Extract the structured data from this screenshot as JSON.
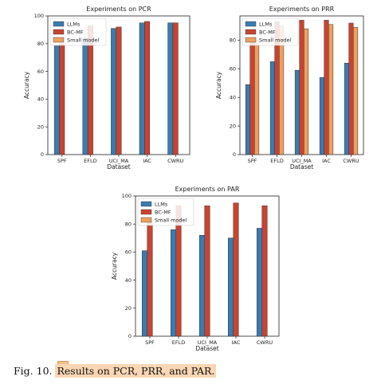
{
  "caption": {
    "label": "Fig. 10.",
    "text": "Results on PCR, PRR, and PAR."
  },
  "colors": {
    "LLMs": "#3a7bb0",
    "BC-MF": "#c9432f",
    "Small model": "#ef9f5f"
  },
  "chart_data": [
    {
      "type": "bar",
      "title": "Experiments on PCR",
      "xlabel": "Dataset",
      "ylabel": "Accuracy",
      "categories": [
        "SPF",
        "EFLD",
        "UCI_MA",
        "IAC",
        "CWRU"
      ],
      "ylim": [
        0,
        100
      ],
      "yticks": [
        0,
        20,
        40,
        60,
        80,
        100
      ],
      "legend_position": "top-left",
      "series": [
        {
          "name": "LLMs",
          "values": [
            79,
            84,
            91,
            95,
            95
          ]
        },
        {
          "name": "BC-MF",
          "values": [
            80,
            93,
            92,
            96,
            95
          ]
        },
        {
          "name": "Small model",
          "values": [
            null,
            null,
            null,
            null,
            null
          ]
        }
      ]
    },
    {
      "type": "bar",
      "title": "Experiments on PRR",
      "xlabel": "Dataset",
      "ylabel": "Accuracy",
      "categories": [
        "SPF",
        "EFLD",
        "UCI_MA",
        "IAC",
        "CWRU"
      ],
      "ylim": [
        0,
        97
      ],
      "yticks": [
        0,
        20,
        40,
        60,
        80
      ],
      "legend_position": "top-left",
      "series": [
        {
          "name": "LLMs",
          "values": [
            49,
            65,
            59,
            54,
            64
          ]
        },
        {
          "name": "BC-MF",
          "values": [
            80,
            93,
            94,
            94,
            92
          ]
        },
        {
          "name": "Small model",
          "values": [
            80,
            90,
            88,
            91,
            89
          ]
        }
      ]
    },
    {
      "type": "bar",
      "title": "Experiments on PAR",
      "xlabel": "Dataset",
      "ylabel": "Accuracy",
      "categories": [
        "SPF",
        "EFLD",
        "UCI_MA",
        "IAC",
        "CWRU"
      ],
      "ylim": [
        0,
        100
      ],
      "yticks": [
        0,
        20,
        40,
        60,
        80,
        100
      ],
      "legend_position": "top-left",
      "series": [
        {
          "name": "LLMs",
          "values": [
            61,
            76,
            72,
            70,
            77
          ]
        },
        {
          "name": "BC-MF",
          "values": [
            82,
            93,
            93,
            95,
            93
          ]
        },
        {
          "name": "Small model",
          "values": [
            null,
            null,
            null,
            null,
            null
          ]
        }
      ]
    }
  ]
}
